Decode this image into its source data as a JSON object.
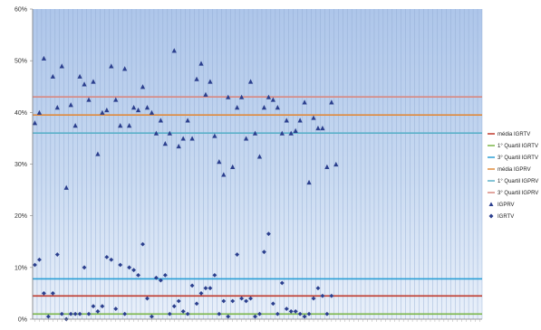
{
  "chart_data": {
    "type": "scatter",
    "title": "",
    "xlabel": "",
    "ylabel": "",
    "ylim": [
      0,
      0.6
    ],
    "yticks": [
      0,
      0.1,
      0.2,
      0.3,
      0.4,
      0.5,
      0.6
    ],
    "ytick_labels": [
      "0%",
      "10%",
      "20%",
      "30%",
      "40%",
      "50%",
      "60%"
    ],
    "grid": "vertical",
    "legend_position": "right",
    "background": "blue-gradient",
    "x_categories_count": 100,
    "x_tick_labels_legible": false,
    "lines": [
      {
        "name": "média IGRTV",
        "value": 0.045,
        "color": "#c0392b"
      },
      {
        "name": "1° Quartil IGRTV",
        "value": 0.01,
        "color": "#7ab648"
      },
      {
        "name": "3° Quartil IGRTV",
        "value": 0.078,
        "color": "#2a9fd6"
      },
      {
        "name": "média IGPRV",
        "value": 0.395,
        "color": "#e08a3c"
      },
      {
        "name": "1° Quartil IGPRV",
        "value": 0.36,
        "color": "#5ab0c9"
      },
      {
        "name": "3° Quartil IGPRV",
        "value": 0.43,
        "color": "#d98880"
      }
    ],
    "series": [
      {
        "name": "IGPRV",
        "marker": "triangle",
        "color": "#2b3f8e",
        "points": [
          [
            1,
            0.38
          ],
          [
            2,
            0.4
          ],
          [
            3,
            0.505
          ],
          [
            5,
            0.47
          ],
          [
            6,
            0.41
          ],
          [
            7,
            0.49
          ],
          [
            8,
            0.255
          ],
          [
            9,
            0.415
          ],
          [
            10,
            0.375
          ],
          [
            11,
            0.47
          ],
          [
            12,
            0.455
          ],
          [
            13,
            0.425
          ],
          [
            14,
            0.46
          ],
          [
            15,
            0.32
          ],
          [
            16,
            0.4
          ],
          [
            17,
            0.405
          ],
          [
            18,
            0.49
          ],
          [
            19,
            0.425
          ],
          [
            20,
            0.375
          ],
          [
            21,
            0.485
          ],
          [
            22,
            0.375
          ],
          [
            23,
            0.41
          ],
          [
            24,
            0.405
          ],
          [
            25,
            0.45
          ],
          [
            26,
            0.41
          ],
          [
            27,
            0.4
          ],
          [
            28,
            0.36
          ],
          [
            29,
            0.385
          ],
          [
            30,
            0.34
          ],
          [
            31,
            0.36
          ],
          [
            32,
            0.52
          ],
          [
            33,
            0.335
          ],
          [
            34,
            0.35
          ],
          [
            35,
            0.385
          ],
          [
            36,
            0.35
          ],
          [
            37,
            0.465
          ],
          [
            38,
            0.495
          ],
          [
            39,
            0.435
          ],
          [
            40,
            0.46
          ],
          [
            41,
            0.355
          ],
          [
            42,
            0.305
          ],
          [
            43,
            0.28
          ],
          [
            44,
            0.43
          ],
          [
            45,
            0.295
          ],
          [
            46,
            0.41
          ],
          [
            47,
            0.43
          ],
          [
            48,
            0.35
          ],
          [
            49,
            0.46
          ],
          [
            50,
            0.36
          ],
          [
            51,
            0.315
          ],
          [
            52,
            0.41
          ],
          [
            53,
            0.43
          ],
          [
            54,
            0.425
          ],
          [
            55,
            0.41
          ],
          [
            56,
            0.36
          ],
          [
            57,
            0.385
          ],
          [
            58,
            0.36
          ],
          [
            59,
            0.365
          ],
          [
            60,
            0.385
          ],
          [
            61,
            0.42
          ],
          [
            62,
            0.265
          ],
          [
            63,
            0.39
          ],
          [
            64,
            0.37
          ],
          [
            65,
            0.37
          ],
          [
            66,
            0.295
          ],
          [
            67,
            0.42
          ],
          [
            68,
            0.3
          ]
        ]
      },
      {
        "name": "IGRTV",
        "marker": "diamond",
        "color": "#2b3f8e",
        "points": [
          [
            1,
            0.105
          ],
          [
            2,
            0.115
          ],
          [
            3,
            0.05
          ],
          [
            4,
            0.005
          ],
          [
            5,
            0.05
          ],
          [
            6,
            0.125
          ],
          [
            7,
            0.01
          ],
          [
            8,
            0.0
          ],
          [
            9,
            0.01
          ],
          [
            10,
            0.01
          ],
          [
            11,
            0.01
          ],
          [
            12,
            0.1
          ],
          [
            13,
            0.01
          ],
          [
            14,
            0.025
          ],
          [
            15,
            0.015
          ],
          [
            16,
            0.025
          ],
          [
            17,
            0.12
          ],
          [
            18,
            0.115
          ],
          [
            19,
            0.02
          ],
          [
            20,
            0.105
          ],
          [
            21,
            0.01
          ],
          [
            22,
            0.1
          ],
          [
            23,
            0.095
          ],
          [
            24,
            0.085
          ],
          [
            25,
            0.145
          ],
          [
            26,
            0.04
          ],
          [
            27,
            0.005
          ],
          [
            28,
            0.08
          ],
          [
            29,
            0.075
          ],
          [
            30,
            0.085
          ],
          [
            31,
            0.01
          ],
          [
            32,
            0.025
          ],
          [
            33,
            0.035
          ],
          [
            34,
            0.015
          ],
          [
            35,
            0.01
          ],
          [
            36,
            0.065
          ],
          [
            37,
            0.03
          ],
          [
            38,
            0.05
          ],
          [
            39,
            0.06
          ],
          [
            40,
            0.06
          ],
          [
            41,
            0.085
          ],
          [
            42,
            0.01
          ],
          [
            43,
            0.035
          ],
          [
            44,
            0.005
          ],
          [
            45,
            0.035
          ],
          [
            46,
            0.125
          ],
          [
            47,
            0.04
          ],
          [
            48,
            0.035
          ],
          [
            49,
            0.04
          ],
          [
            50,
            0.005
          ],
          [
            51,
            0.01
          ],
          [
            52,
            0.13
          ],
          [
            53,
            0.165
          ],
          [
            54,
            0.03
          ],
          [
            55,
            0.01
          ],
          [
            56,
            0.07
          ],
          [
            57,
            0.02
          ],
          [
            58,
            0.015
          ],
          [
            59,
            0.015
          ],
          [
            60,
            0.01
          ],
          [
            61,
            0.005
          ],
          [
            62,
            0.01
          ],
          [
            63,
            0.04
          ],
          [
            64,
            0.06
          ],
          [
            65,
            0.045
          ],
          [
            66,
            0.01
          ],
          [
            67,
            0.045
          ]
        ]
      }
    ],
    "legend": [
      {
        "label": "média IGRTV",
        "symbol": "line",
        "color": "#c0392b"
      },
      {
        "label": "1° Quartil IGRTV",
        "symbol": "line",
        "color": "#7ab648"
      },
      {
        "label": "3° Quartil IGRTV",
        "symbol": "line",
        "color": "#2a9fd6"
      },
      {
        "label": "média IGPRV",
        "symbol": "line",
        "color": "#e08a3c"
      },
      {
        "label": "1° Quartil IGPRV",
        "symbol": "line",
        "color": "#5ab0c9"
      },
      {
        "label": "3° Quartil IGPRV",
        "symbol": "line",
        "color": "#d98880"
      },
      {
        "label": "IGPRV",
        "symbol": "triangle",
        "color": "#2b3f8e"
      },
      {
        "label": "IGRTV",
        "symbol": "diamond",
        "color": "#2b3f8e"
      }
    ]
  }
}
